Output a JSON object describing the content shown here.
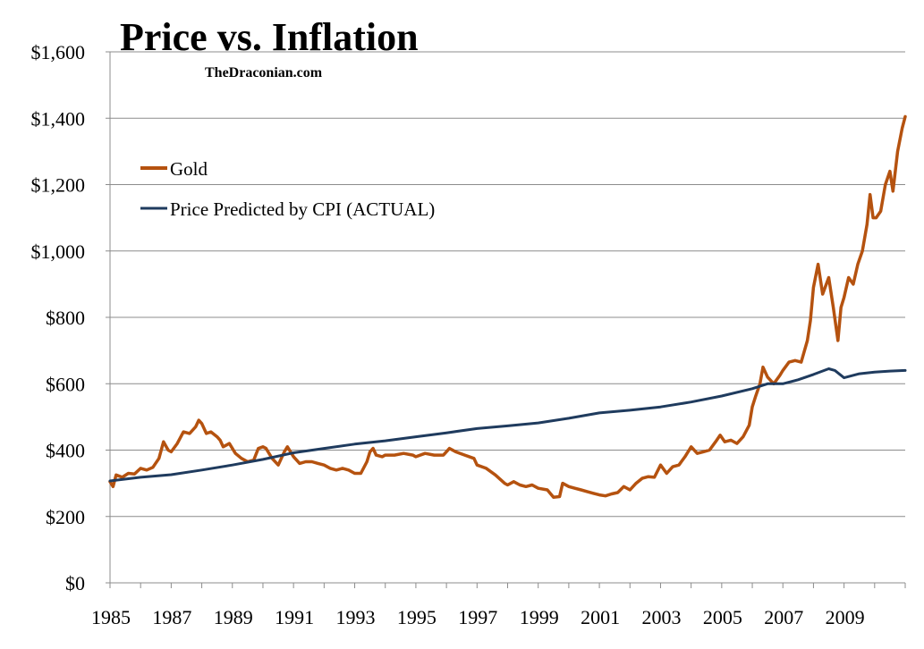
{
  "chart_data": {
    "type": "line",
    "title": "Price vs. Inflation",
    "subtitle": "TheDraconian.com",
    "xlabel": "",
    "ylabel": "",
    "xlim": [
      1985,
      2011
    ],
    "ylim": [
      0,
      1600
    ],
    "y_ticks": [
      0,
      200,
      400,
      600,
      800,
      1000,
      1200,
      1400,
      1600
    ],
    "y_tick_labels": [
      "$0",
      "$200",
      "$400",
      "$600",
      "$800",
      "$1,000",
      "$1,200",
      "$1,400",
      "$1,600"
    ],
    "x_ticks": [
      1985,
      1987,
      1989,
      1991,
      1993,
      1995,
      1997,
      1999,
      2001,
      2003,
      2005,
      2007,
      2009
    ],
    "x_tick_labels": [
      "1985",
      "1987",
      "1989",
      "1991",
      "1993",
      "1995",
      "1997",
      "1999",
      "2001",
      "2003",
      "2005",
      "2007",
      "2009"
    ],
    "grid": "horizontal",
    "legend_position": "top-left",
    "colors": {
      "gold": "#b5520f",
      "cpi": "#1f3b5e",
      "grid": "#8c8c8c"
    },
    "series": [
      {
        "name": "Gold",
        "color": "#b5520f",
        "points": [
          [
            1985.0,
            305
          ],
          [
            1985.1,
            290
          ],
          [
            1985.2,
            325
          ],
          [
            1985.4,
            318
          ],
          [
            1985.6,
            330
          ],
          [
            1985.8,
            328
          ],
          [
            1986.0,
            345
          ],
          [
            1986.2,
            340
          ],
          [
            1986.4,
            348
          ],
          [
            1986.6,
            375
          ],
          [
            1986.75,
            425
          ],
          [
            1986.9,
            400
          ],
          [
            1987.0,
            395
          ],
          [
            1987.2,
            420
          ],
          [
            1987.4,
            455
          ],
          [
            1987.6,
            450
          ],
          [
            1987.8,
            470
          ],
          [
            1987.9,
            490
          ],
          [
            1988.0,
            480
          ],
          [
            1988.15,
            450
          ],
          [
            1988.3,
            455
          ],
          [
            1988.5,
            440
          ],
          [
            1988.6,
            430
          ],
          [
            1988.7,
            410
          ],
          [
            1988.9,
            420
          ],
          [
            1989.1,
            390
          ],
          [
            1989.3,
            375
          ],
          [
            1989.5,
            365
          ],
          [
            1989.7,
            370
          ],
          [
            1989.85,
            405
          ],
          [
            1990.0,
            410
          ],
          [
            1990.1,
            405
          ],
          [
            1990.3,
            375
          ],
          [
            1990.5,
            355
          ],
          [
            1990.7,
            395
          ],
          [
            1990.8,
            410
          ],
          [
            1991.0,
            380
          ],
          [
            1991.2,
            360
          ],
          [
            1991.4,
            365
          ],
          [
            1991.6,
            365
          ],
          [
            1991.8,
            360
          ],
          [
            1992.0,
            355
          ],
          [
            1992.2,
            345
          ],
          [
            1992.4,
            340
          ],
          [
            1992.6,
            345
          ],
          [
            1992.8,
            340
          ],
          [
            1993.0,
            330
          ],
          [
            1993.2,
            330
          ],
          [
            1993.4,
            365
          ],
          [
            1993.5,
            395
          ],
          [
            1993.6,
            405
          ],
          [
            1993.7,
            385
          ],
          [
            1993.9,
            380
          ],
          [
            1994.0,
            385
          ],
          [
            1994.3,
            385
          ],
          [
            1994.6,
            390
          ],
          [
            1994.9,
            385
          ],
          [
            1995.0,
            380
          ],
          [
            1995.3,
            390
          ],
          [
            1995.6,
            385
          ],
          [
            1995.9,
            385
          ],
          [
            1996.1,
            405
          ],
          [
            1996.3,
            395
          ],
          [
            1996.6,
            385
          ],
          [
            1996.9,
            375
          ],
          [
            1997.0,
            355
          ],
          [
            1997.3,
            345
          ],
          [
            1997.6,
            325
          ],
          [
            1997.9,
            300
          ],
          [
            1998.0,
            295
          ],
          [
            1998.2,
            305
          ],
          [
            1998.4,
            295
          ],
          [
            1998.6,
            290
          ],
          [
            1998.8,
            295
          ],
          [
            1999.0,
            285
          ],
          [
            1999.3,
            280
          ],
          [
            1999.5,
            258
          ],
          [
            1999.7,
            260
          ],
          [
            1999.8,
            300
          ],
          [
            2000.0,
            290
          ],
          [
            2000.2,
            285
          ],
          [
            2000.4,
            280
          ],
          [
            2000.6,
            275
          ],
          [
            2000.8,
            270
          ],
          [
            2001.0,
            265
          ],
          [
            2001.2,
            262
          ],
          [
            2001.4,
            268
          ],
          [
            2001.6,
            272
          ],
          [
            2001.8,
            290
          ],
          [
            2002.0,
            280
          ],
          [
            2002.2,
            300
          ],
          [
            2002.4,
            315
          ],
          [
            2002.6,
            320
          ],
          [
            2002.8,
            318
          ],
          [
            2003.0,
            355
          ],
          [
            2003.2,
            330
          ],
          [
            2003.4,
            350
          ],
          [
            2003.6,
            355
          ],
          [
            2003.8,
            380
          ],
          [
            2004.0,
            410
          ],
          [
            2004.2,
            390
          ],
          [
            2004.4,
            395
          ],
          [
            2004.6,
            400
          ],
          [
            2004.8,
            425
          ],
          [
            2004.95,
            445
          ],
          [
            2005.1,
            425
          ],
          [
            2005.3,
            430
          ],
          [
            2005.5,
            420
          ],
          [
            2005.7,
            440
          ],
          [
            2005.9,
            475
          ],
          [
            2006.0,
            530
          ],
          [
            2006.1,
            560
          ],
          [
            2006.25,
            600
          ],
          [
            2006.35,
            650
          ],
          [
            2006.5,
            620
          ],
          [
            2006.7,
            600
          ],
          [
            2006.9,
            625
          ],
          [
            2007.0,
            640
          ],
          [
            2007.2,
            665
          ],
          [
            2007.4,
            670
          ],
          [
            2007.6,
            665
          ],
          [
            2007.8,
            730
          ],
          [
            2007.9,
            790
          ],
          [
            2008.0,
            890
          ],
          [
            2008.15,
            960
          ],
          [
            2008.3,
            870
          ],
          [
            2008.5,
            920
          ],
          [
            2008.65,
            830
          ],
          [
            2008.8,
            730
          ],
          [
            2008.9,
            830
          ],
          [
            2009.0,
            860
          ],
          [
            2009.15,
            920
          ],
          [
            2009.3,
            900
          ],
          [
            2009.45,
            960
          ],
          [
            2009.6,
            1000
          ],
          [
            2009.75,
            1080
          ],
          [
            2009.85,
            1170
          ],
          [
            2009.95,
            1100
          ],
          [
            2010.05,
            1100
          ],
          [
            2010.2,
            1120
          ],
          [
            2010.35,
            1200
          ],
          [
            2010.5,
            1240
          ],
          [
            2010.6,
            1180
          ],
          [
            2010.75,
            1300
          ],
          [
            2010.9,
            1370
          ],
          [
            2011.0,
            1405
          ]
        ]
      },
      {
        "name": "Price Predicted by CPI (ACTUAL)",
        "color": "#1f3b5e",
        "points": [
          [
            1985.0,
            307
          ],
          [
            1986.0,
            318
          ],
          [
            1987.0,
            326
          ],
          [
            1988.0,
            340
          ],
          [
            1989.0,
            355
          ],
          [
            1990.0,
            372
          ],
          [
            1991.0,
            392
          ],
          [
            1992.0,
            405
          ],
          [
            1993.0,
            418
          ],
          [
            1994.0,
            428
          ],
          [
            1995.0,
            440
          ],
          [
            1996.0,
            452
          ],
          [
            1997.0,
            465
          ],
          [
            1998.0,
            473
          ],
          [
            1999.0,
            482
          ],
          [
            2000.0,
            496
          ],
          [
            2001.0,
            512
          ],
          [
            2002.0,
            520
          ],
          [
            2003.0,
            530
          ],
          [
            2004.0,
            545
          ],
          [
            2005.0,
            563
          ],
          [
            2006.0,
            585
          ],
          [
            2006.5,
            600
          ],
          [
            2007.0,
            600
          ],
          [
            2007.5,
            612
          ],
          [
            2008.0,
            628
          ],
          [
            2008.5,
            645
          ],
          [
            2008.7,
            640
          ],
          [
            2009.0,
            618
          ],
          [
            2009.5,
            630
          ],
          [
            2010.0,
            635
          ],
          [
            2010.5,
            638
          ],
          [
            2011.0,
            640
          ]
        ]
      }
    ]
  }
}
